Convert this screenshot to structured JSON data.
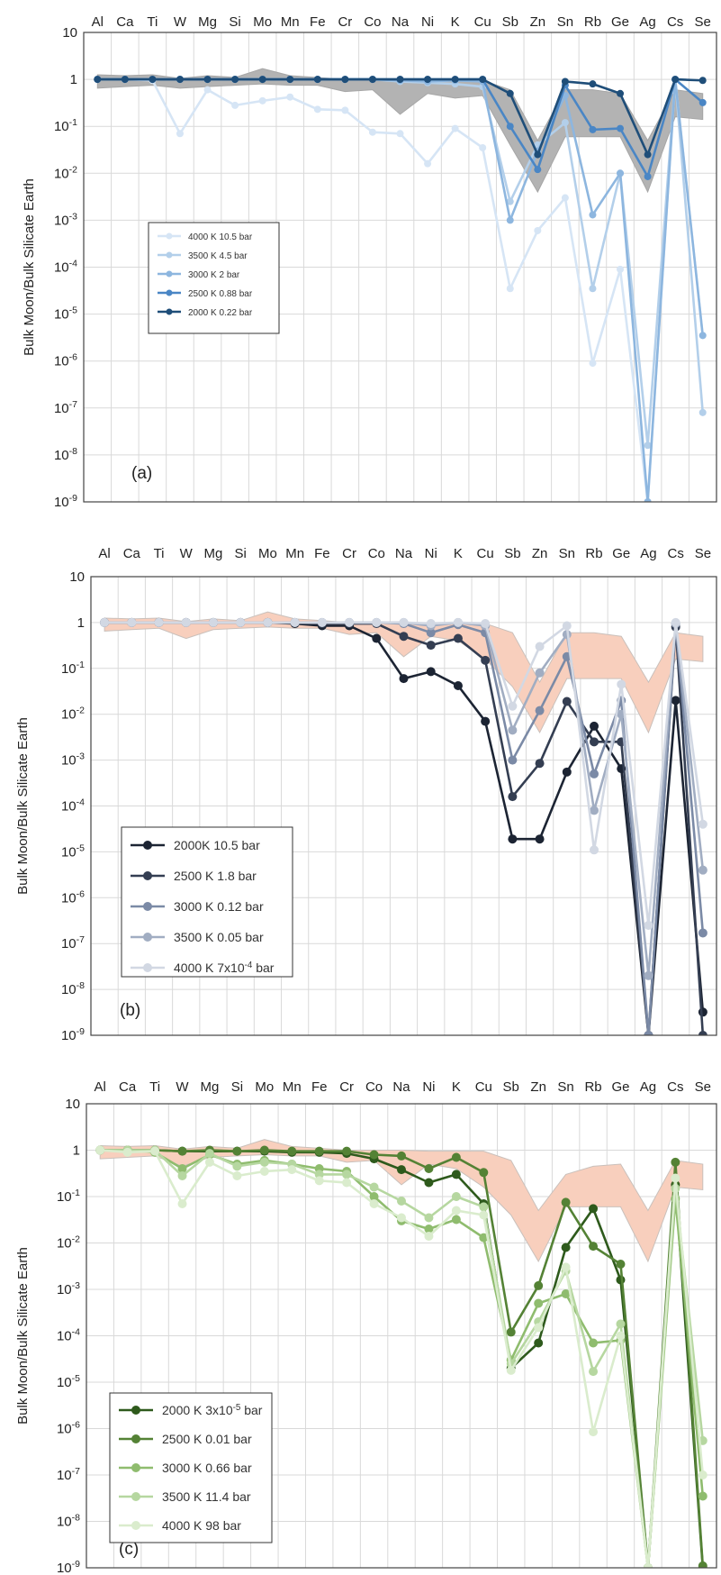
{
  "chart_data": [
    {
      "type": "line",
      "panel_label": "(a)",
      "ylabel": "Bulk Moon/Bulk Silicate Earth",
      "yscale": "log",
      "ylim": [
        1e-09,
        10
      ],
      "y_ticks": [
        {
          "base": "10",
          "exp": ""
        },
        {
          "base": "1",
          "exp": ""
        },
        {
          "base": "10",
          "exp": "-1"
        },
        {
          "base": "10",
          "exp": "-2"
        },
        {
          "base": "10",
          "exp": "-3"
        },
        {
          "base": "10",
          "exp": "-4"
        },
        {
          "base": "10",
          "exp": "-5"
        },
        {
          "base": "10",
          "exp": "-6"
        },
        {
          "base": "10",
          "exp": "-7"
        },
        {
          "base": "10",
          "exp": "-8"
        },
        {
          "base": "10",
          "exp": "-9"
        }
      ],
      "categories": [
        "Al",
        "Ca",
        "Ti",
        "W",
        "Mg",
        "Si",
        "Mo",
        "Mn",
        "Fe",
        "Cr",
        "Co",
        "Na",
        "Ni",
        "K",
        "Cu",
        "Sb",
        "Zn",
        "Sn",
        "Rb",
        "Ge",
        "Ag",
        "Cs",
        "Se"
      ],
      "band": {
        "color": "#b3b3b3",
        "upper": [
          1.25,
          1.2,
          1.25,
          1.05,
          1.2,
          1.1,
          1.7,
          1.2,
          1.1,
          1.0,
          1.0,
          1.0,
          0.95,
          0.95,
          0.95,
          0.6,
          0.05,
          0.6,
          0.6,
          0.5,
          0.05,
          0.6,
          0.5
        ],
        "lower": [
          0.65,
          0.7,
          0.75,
          0.65,
          0.7,
          0.75,
          0.8,
          0.75,
          0.75,
          0.55,
          0.6,
          0.18,
          0.5,
          0.4,
          0.45,
          0.04,
          0.004,
          0.06,
          0.06,
          0.06,
          0.004,
          0.16,
          0.14
        ]
      },
      "legend": {
        "placement": "left-middle",
        "size": "small"
      },
      "series": [
        {
          "name": "4000 K 10.5 bar",
          "color": "#d6e5f5",
          "values": [
            1.0,
            1.0,
            0.95,
            0.07,
            0.6,
            0.28,
            0.35,
            0.42,
            0.23,
            0.22,
            0.075,
            0.07,
            0.016,
            0.09,
            0.035,
            3.5e-05,
            0.0006,
            0.003,
            9e-07,
            9e-05,
            1e-09,
            1.0,
            3.5e-06
          ]
        },
        {
          "name": "3500 K 4.5 bar",
          "color": "#b3cfea",
          "values": [
            1.0,
            1.0,
            1.0,
            1.0,
            1.0,
            1.0,
            1.0,
            1.0,
            1.0,
            1.0,
            1.0,
            0.9,
            0.85,
            0.8,
            0.7,
            0.0025,
            0.04,
            0.12,
            3.5e-05,
            0.01,
            1.6e-08,
            1.0,
            8e-08
          ]
        },
        {
          "name": "3000 K 2 bar",
          "color": "#8db6df",
          "values": [
            1.0,
            1.0,
            1.0,
            1.0,
            1.0,
            1.0,
            1.0,
            1.0,
            1.0,
            1.0,
            1.0,
            0.95,
            0.9,
            0.95,
            0.9,
            0.001,
            0.03,
            0.45,
            0.0013,
            0.01,
            1e-09,
            1.0,
            3.5e-06
          ]
        },
        {
          "name": "2500 K 0.88 bar",
          "color": "#4a86c5",
          "values": [
            1.0,
            1.0,
            1.0,
            1.0,
            1.0,
            1.0,
            1.0,
            1.0,
            1.0,
            1.0,
            1.0,
            1.0,
            1.0,
            1.0,
            1.0,
            0.1,
            0.012,
            0.75,
            0.085,
            0.09,
            0.0085,
            1.0,
            0.32
          ]
        },
        {
          "name": "2000 K 0.22 bar",
          "color": "#1f4e79",
          "values": [
            1.0,
            1.0,
            1.0,
            1.0,
            1.0,
            1.0,
            1.0,
            1.0,
            1.0,
            1.0,
            1.0,
            1.0,
            1.0,
            1.0,
            1.0,
            0.5,
            0.025,
            0.9,
            0.8,
            0.5,
            0.025,
            1.0,
            0.95
          ]
        }
      ]
    },
    {
      "type": "line",
      "panel_label": "(b)",
      "ylabel": "Bulk Moon/Bulk Silicate Earth",
      "yscale": "log",
      "ylim": [
        1e-09,
        10
      ],
      "y_ticks": [
        {
          "base": "10",
          "exp": ""
        },
        {
          "base": "1",
          "exp": ""
        },
        {
          "base": "10",
          "exp": "-1"
        },
        {
          "base": "10",
          "exp": "-2"
        },
        {
          "base": "10",
          "exp": "-3"
        },
        {
          "base": "10",
          "exp": "-4"
        },
        {
          "base": "10",
          "exp": "-5"
        },
        {
          "base": "10",
          "exp": "-6"
        },
        {
          "base": "10",
          "exp": "-7"
        },
        {
          "base": "10",
          "exp": "-8"
        },
        {
          "base": "10",
          "exp": "-9"
        }
      ],
      "categories": [
        "Al",
        "Ca",
        "Ti",
        "W",
        "Mg",
        "Si",
        "Mo",
        "Mn",
        "Fe",
        "Cr",
        "Co",
        "Na",
        "Ni",
        "K",
        "Cu",
        "Sb",
        "Zn",
        "Sn",
        "Rb",
        "Ge",
        "Ag",
        "Cs",
        "Se"
      ],
      "band": {
        "color": "#f8cfbd",
        "upper": [
          1.25,
          1.2,
          1.25,
          1.05,
          1.2,
          1.1,
          1.7,
          1.2,
          1.1,
          1.0,
          1.0,
          1.0,
          0.95,
          0.95,
          0.95,
          0.6,
          0.05,
          0.6,
          0.6,
          0.5,
          0.05,
          0.6,
          0.5
        ],
        "lower": [
          0.65,
          0.7,
          0.75,
          0.45,
          0.7,
          0.75,
          0.8,
          0.75,
          0.75,
          0.55,
          0.6,
          0.18,
          0.5,
          0.4,
          0.16,
          0.04,
          0.004,
          0.06,
          0.06,
          0.06,
          0.004,
          0.16,
          0.14
        ]
      },
      "legend": {
        "placement": "bottom-left",
        "size": "large"
      },
      "series": [
        {
          "name": "2000K 10.5 bar",
          "color": "#1c2433",
          "values": [
            1.0,
            1.0,
            1.0,
            1.0,
            1.0,
            1.0,
            1.0,
            0.95,
            0.85,
            0.85,
            0.45,
            0.06,
            0.085,
            0.042,
            0.007,
            1.9e-05,
            1.9e-05,
            0.00055,
            0.0055,
            0.00065,
            1e-09,
            0.02,
            3.2e-09
          ]
        },
        {
          "name": "2500 K 1.8 bar",
          "color": "#343e52",
          "values": [
            1.0,
            1.0,
            1.0,
            1.0,
            1.0,
            1.0,
            1.0,
            1.0,
            0.95,
            0.95,
            0.95,
            0.5,
            0.32,
            0.45,
            0.15,
            0.00016,
            0.00085,
            0.019,
            0.0025,
            0.0025,
            1e-09,
            0.8,
            1e-09
          ]
        },
        {
          "name": "3000 K 0.12 bar",
          "color": "#7b8aa6",
          "values": [
            1.0,
            1.0,
            1.0,
            1.0,
            1.0,
            1.0,
            1.0,
            1.0,
            1.0,
            1.0,
            1.0,
            0.95,
            0.6,
            0.9,
            0.6,
            0.001,
            0.012,
            0.18,
            0.0005,
            0.02,
            1e-09,
            0.95,
            1.7e-07
          ]
        },
        {
          "name": "3500 K 0.05 bar",
          "color": "#a1adc2",
          "values": [
            1.0,
            1.0,
            1.0,
            1.0,
            1.0,
            1.0,
            1.0,
            1.0,
            1.0,
            1.0,
            1.0,
            1.0,
            0.85,
            1.0,
            0.85,
            0.0045,
            0.08,
            0.55,
            8e-05,
            0.01,
            2e-08,
            0.95,
            4e-06
          ]
        },
        {
          "name": "4000 K 7x10-4 bar",
          "label_base": "4000 K 7x10",
          "label_exp": "-4",
          "label_tail": " bar",
          "color": "#d2d8e3",
          "values": [
            1.0,
            1.0,
            1.0,
            1.0,
            1.0,
            1.0,
            1.0,
            1.0,
            1.0,
            1.0,
            1.0,
            1.0,
            0.95,
            1.0,
            0.95,
            0.015,
            0.3,
            0.85,
            1.1e-05,
            0.045,
            2.5e-07,
            1.0,
            4e-05
          ]
        }
      ]
    },
    {
      "type": "line",
      "panel_label": "(c)",
      "ylabel": "Bulk Moon/Bulk Silicate Earth",
      "yscale": "log",
      "ylim": [
        1e-09,
        10
      ],
      "y_ticks": [
        {
          "base": "10",
          "exp": ""
        },
        {
          "base": "1",
          "exp": ""
        },
        {
          "base": "10",
          "exp": "-1"
        },
        {
          "base": "10",
          "exp": "-2"
        },
        {
          "base": "10",
          "exp": "-3"
        },
        {
          "base": "10",
          "exp": "-4"
        },
        {
          "base": "10",
          "exp": "-5"
        },
        {
          "base": "10",
          "exp": "-6"
        },
        {
          "base": "10",
          "exp": "-7"
        },
        {
          "base": "10",
          "exp": "-8"
        },
        {
          "base": "10",
          "exp": "-9"
        }
      ],
      "categories": [
        "Al",
        "Ca",
        "Ti",
        "W",
        "Mg",
        "Si",
        "Mo",
        "Mn",
        "Fe",
        "Cr",
        "Co",
        "Na",
        "Ni",
        "K",
        "Cu",
        "Sb",
        "Zn",
        "Sn",
        "Rb",
        "Ge",
        "Ag",
        "Cs",
        "Se"
      ],
      "band": {
        "color": "#f8cfbd",
        "upper": [
          1.25,
          1.2,
          1.25,
          1.05,
          1.2,
          1.1,
          1.7,
          1.2,
          1.1,
          1.0,
          1.0,
          1.0,
          0.95,
          0.95,
          0.95,
          0.6,
          0.05,
          0.3,
          0.45,
          0.5,
          0.05,
          0.6,
          0.5
        ],
        "lower": [
          0.65,
          0.7,
          0.75,
          0.45,
          0.7,
          0.75,
          0.8,
          0.75,
          0.75,
          0.55,
          0.6,
          0.18,
          0.5,
          0.4,
          0.16,
          0.04,
          0.004,
          0.06,
          0.06,
          0.06,
          0.004,
          0.16,
          0.14
        ]
      },
      "legend": {
        "placement": "bottom-left",
        "size": "large"
      },
      "series": [
        {
          "name": "2000 K 3x10-5 bar",
          "label_base": "2000 K 3x10",
          "label_exp": "-5",
          "label_tail": " bar",
          "color": "#2e5a1c",
          "values": [
            1.0,
            1.0,
            1.0,
            0.95,
            0.95,
            0.95,
            0.95,
            0.9,
            0.9,
            0.85,
            0.65,
            0.38,
            0.2,
            0.3,
            0.07,
            2e-05,
            7e-05,
            0.008,
            0.055,
            0.0016,
            1e-09,
            0.18,
            1e-09
          ]
        },
        {
          "name": "2500 K 0.01 bar",
          "color": "#548235",
          "values": [
            1.0,
            1.0,
            1.0,
            0.95,
            1.0,
            0.95,
            1.0,
            0.95,
            0.95,
            0.95,
            0.8,
            0.75,
            0.4,
            0.7,
            0.33,
            0.00012,
            0.0012,
            0.075,
            0.0085,
            0.0035,
            1e-09,
            0.55,
            1.1e-09
          ]
        },
        {
          "name": "3000 K 0.66 bar",
          "color": "#8fbc6e",
          "values": [
            1.0,
            1.0,
            0.9,
            0.4,
            0.8,
            0.5,
            0.6,
            0.5,
            0.4,
            0.35,
            0.1,
            0.03,
            0.02,
            0.032,
            0.013,
            3e-05,
            0.0005,
            0.0008,
            7e-05,
            8e-05,
            1e-09,
            0.09,
            3.5e-08
          ]
        },
        {
          "name": "3500 K 11.4 bar",
          "color": "#b6d7a0",
          "values": [
            1.0,
            1.0,
            1.0,
            0.28,
            0.85,
            0.45,
            0.55,
            0.5,
            0.3,
            0.3,
            0.16,
            0.08,
            0.035,
            0.1,
            0.06,
            2.5e-05,
            0.0002,
            0.0025,
            1.7e-05,
            0.00018,
            1e-09,
            0.15,
            5.5e-07
          ]
        },
        {
          "name": "4000 K 98 bar",
          "color": "#daeccd",
          "values": [
            1.0,
            0.9,
            0.95,
            0.07,
            0.55,
            0.28,
            0.35,
            0.38,
            0.22,
            0.2,
            0.07,
            0.035,
            0.014,
            0.05,
            0.04,
            1.8e-05,
            0.00015,
            0.003,
            8.5e-07,
            0.0001,
            1e-09,
            0.25,
            1e-07
          ]
        }
      ]
    }
  ]
}
